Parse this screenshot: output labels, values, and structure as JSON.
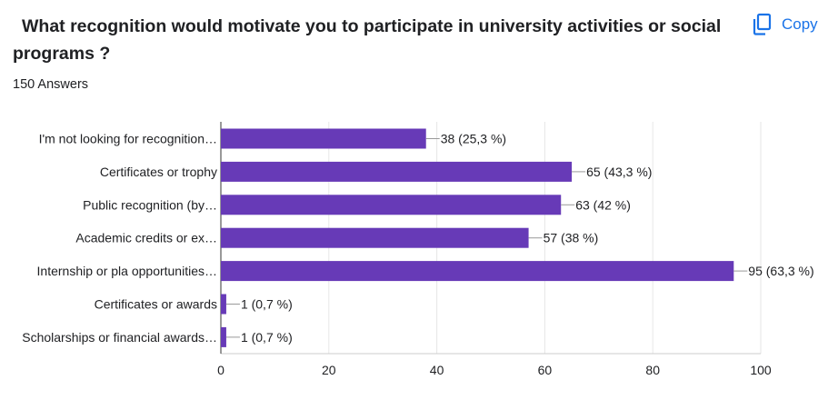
{
  "question": {
    "title": "What recognition would motivate you to participate in university activities or social programs ?",
    "answer_count": "150 Answers"
  },
  "toolbar": {
    "copy_label": "Copy",
    "copy_icon": "copy-icon"
  },
  "colors": {
    "bar": "#673ab7",
    "link": "#1a73e8",
    "grid": "#e6e6e6",
    "axis": "#333333",
    "text": "#202124"
  },
  "chart_data": {
    "type": "bar",
    "orientation": "horizontal",
    "categories": [
      "I'm not looking for recognition…",
      "Certificates or trophy",
      "Public recognition (by…",
      "Academic credits or ex…",
      "Internship or pla opportunities…",
      "Certificates or awards",
      "Scholarships or financial awards…"
    ],
    "values": [
      38,
      65,
      63,
      57,
      95,
      1,
      1
    ],
    "data_labels": [
      "38 (25,3 %)",
      "65 (43,3 %)",
      "63 (42 %)",
      "57 (38 %)",
      "95 (63,3 %)",
      "1 (0,7 %)",
      "1 (0,7 %)"
    ],
    "xlim": [
      0,
      100
    ],
    "x_ticks": [
      0,
      20,
      40,
      60,
      80,
      100
    ],
    "title": "",
    "xlabel": "",
    "ylabel": "",
    "grid": true,
    "legend": "none"
  }
}
